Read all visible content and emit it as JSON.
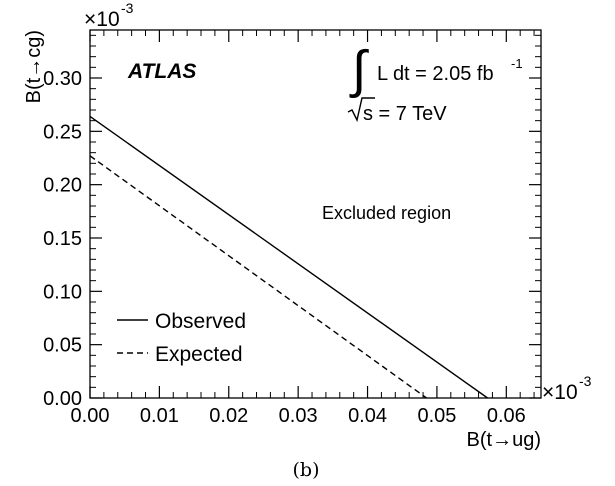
{
  "chart_data": {
    "type": "line",
    "xlabel": "B(t→ug)",
    "ylabel": "B(t→cg)",
    "x_multiplier": "×10",
    "y_multiplier": "×10",
    "multiplier_exponent": "-3",
    "xlim": [
      0.0,
      0.065
    ],
    "ylim": [
      0.0,
      0.345
    ],
    "x_ticks": [
      "0.00",
      "0.01",
      "0.02",
      "0.03",
      "0.04",
      "0.05",
      "0.06"
    ],
    "y_ticks": [
      "0.00",
      "0.05",
      "0.10",
      "0.15",
      "0.20",
      "0.25",
      "0.30"
    ],
    "grid": false,
    "legend_position": "bottom-left",
    "series": [
      {
        "name": "Observed",
        "style": "solid",
        "x": [
          0.0,
          0.0573
        ],
        "y": [
          0.264,
          0.0
        ]
      },
      {
        "name": "Expected",
        "style": "dashed",
        "x": [
          0.0,
          0.0485
        ],
        "y": [
          0.227,
          0.0
        ]
      }
    ],
    "annotations": {
      "experiment": "ATLAS",
      "luminosity": "L dt = 2.05 fb",
      "luminosity_exponent": "-1",
      "energy": "s = 7 TeV",
      "region": "Excluded region"
    },
    "caption": "(b)"
  }
}
